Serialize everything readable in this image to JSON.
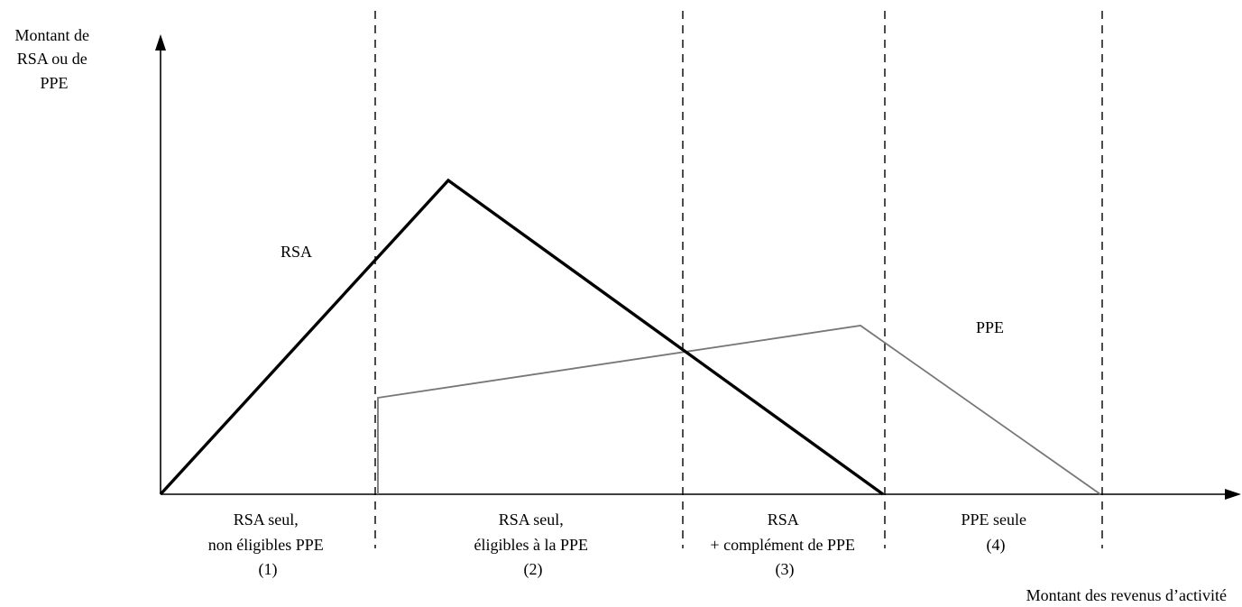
{
  "title": "",
  "y_axis_label": [
    "Montant de",
    "RSA ou de",
    "PPE"
  ],
  "x_axis_label": "Montant des revenus d’activité",
  "series": {
    "rsa": {
      "label": "RSA",
      "color": "#000000"
    },
    "ppe": {
      "label": "PPE",
      "color": "#777777"
    }
  },
  "zones": [
    {
      "lines": [
        "RSA seul,",
        "non éligibles PPE",
        "(1)"
      ]
    },
    {
      "lines": [
        "RSA seul,",
        "éligibles à la PPE",
        "(2)"
      ]
    },
    {
      "lines": [
        "RSA",
        "+ complément de PPE",
        "(3)"
      ]
    },
    {
      "lines": [
        "PPE seule",
        "(4)"
      ]
    }
  ]
}
